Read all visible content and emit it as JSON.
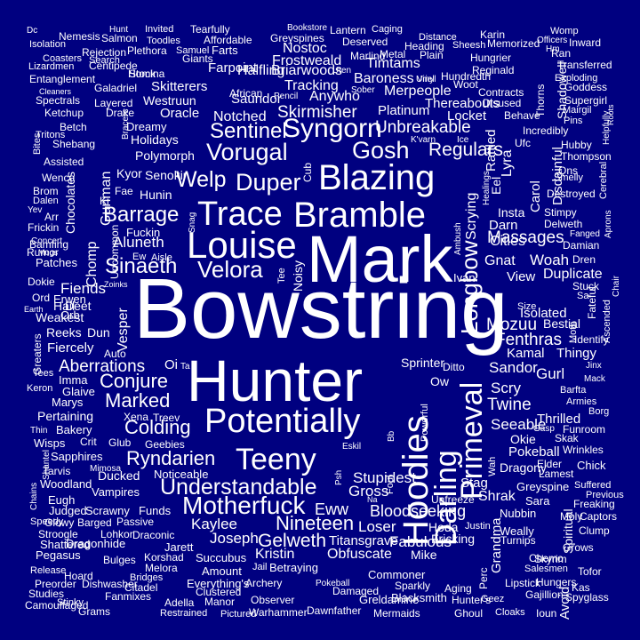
{
  "colors": {
    "background": "#000080",
    "text": "#ffffff"
  },
  "words": [
    "Bowstring",
    "Mark",
    "Hunter",
    "Bramble",
    "Louise",
    "Blazing",
    "Trace",
    "Potentially",
    "Hoodies",
    "Syngorn",
    "Teeny",
    "Darling",
    "Primeval",
    "Motherfuck",
    "Understandable",
    "Vorugal",
    "Gosh",
    "Sentinel",
    "Duper",
    "Velora",
    "Welp",
    "Longbow",
    "Sinaeth",
    "Barrage",
    "Conjure",
    "Marked",
    "Colding",
    "Ryndarien",
    "Nineteen",
    "Gelweth",
    "Skirmisher",
    "Unbreakable",
    "Regulars",
    "Aberrations",
    "Massages",
    "Bloodseeking",
    "Eww",
    "Twine",
    "Fenthras",
    "Mozuu",
    "Aluneth",
    "Fiends",
    "Kaylee",
    "Joseph",
    "Sandor",
    "Scry",
    "Seeable",
    "Gurl",
    "Kamal",
    "Shrak",
    "Stupidest",
    "Gross",
    "Loser",
    "Fabulous",
    "Stag",
    "Kristin",
    "Obfuscate",
    "Titansgrave",
    "Fricking",
    "Hoda",
    "Mike",
    "Nostoc",
    "Frostweald",
    "Briarwoods",
    "Tracking",
    "Anywho",
    "Baroness",
    "Timtams",
    "Merpeople",
    "Thereabouts",
    "Platinum",
    "Locket",
    "Notched",
    "Oracle",
    "Halfling",
    "Saundor",
    "Farpoint",
    "Skitterers",
    "Westruun",
    "Polymorph",
    "Holidays",
    "Dreamy",
    "Senokir",
    "Kyor",
    "Hunin",
    "Orb",
    "Erwen",
    "Hail",
    "Deet",
    "Patches",
    "Bamfing",
    "Rumor",
    "Dokie",
    "Ord",
    "Weakest",
    "Reeks",
    "Dun",
    "Fiercely",
    "Imma",
    "Glaive",
    "Marys",
    "Pertaining",
    "Bakery",
    "Crit",
    "Wisps",
    "Sapphires",
    "Tarvis",
    "Woodland",
    "Vampires",
    "Ducked",
    "Noticeable",
    "Geebies",
    "Eugh",
    "Judged",
    "Scrawny",
    "Funds",
    "Glowy",
    "Barged",
    "Passive",
    "Lohkor",
    "Draconic",
    "Jarett",
    "Dragonhide",
    "Stroogle",
    "Shattered",
    "Pegasus",
    "Bulges",
    "Melora",
    "Korshad",
    "Succubus",
    "Amount",
    "Jail",
    "Betraying",
    "Commoner",
    "Blacksmith",
    "Sparkly",
    "Aging",
    "Hunter's",
    "Geez",
    "Gajillion",
    "Ghoul",
    "Cloaks",
    "Ioun",
    "Mermaids",
    "Greldamine",
    "Dawnfather",
    "Observer",
    "Warhammer",
    "Manor",
    "Pictured",
    "Restrained",
    "Adella",
    "Grams",
    "Camouflaged",
    "Stinky",
    "Studies",
    "Preorder",
    "Release",
    "Hoard",
    "Dishwasher",
    "Bridges",
    "Citadel",
    "Fanmixes",
    "Everything's",
    "Clustered",
    "Archery",
    "Damaged",
    "Pokeball",
    "Dc",
    "Hunt",
    "Invited",
    "Tearfully",
    "Bookstore",
    "Lantern",
    "Caging",
    "Karin",
    "Womp",
    "Nemesis",
    "Salmon",
    "Toodles",
    "Affordable",
    "Greyspines",
    "Deserved",
    "Distance",
    "Memorized",
    "Officers",
    "Inward",
    "Isolation",
    "Rejection",
    "Plethora",
    "Samuel",
    "Farts",
    "Heading",
    "Sheesh",
    "Hm",
    "Ran",
    "Coasters",
    "Search",
    "Giants",
    "Marlind",
    "Metal",
    "Plain",
    "Hungrier",
    "Transferred",
    "Lizardmen",
    "Centipede",
    "Homina",
    "Uten",
    "Vinyl",
    "Hundredth",
    "Reginald",
    "Exploding",
    "Entanglement",
    "Stock",
    "Uriel",
    "Woot",
    "Goddess",
    "Cleaners",
    "African",
    "Sober",
    "Contracts",
    "Supergirl",
    "Spectrals",
    "Galadriel",
    "Pencil",
    "Disused",
    "Mairgil",
    "Layered",
    "Behave",
    "Pins",
    "Ketchup",
    "Drake",
    "Betch",
    "Incredibly",
    "Hubby",
    "Tritons",
    "Shebang",
    "K'varn",
    "Ice",
    "Ufc",
    "Thompson",
    "Assisted",
    "Wence",
    "Smelly",
    "Qns",
    "Destroyed",
    "Brom",
    "Dalen",
    "Yev",
    "Arr",
    "Frickin",
    "Concert",
    "Mugs",
    "Zoinks",
    "Earth",
    "Tees",
    "Keron",
    "Thin",
    "Mimosa",
    "Speedy",
    "Auto",
    "Oi",
    "Ta",
    "Xena",
    "Treev",
    "Glub",
    "Fae",
    "Ew",
    "Aisle",
    "Snag",
    "Cub",
    "Noisy",
    "Tee",
    "Fuckin",
    "Ki",
    "Insta",
    "Darn",
    "Cities",
    "Gnat",
    "Woah",
    "Dren",
    "Duplicate",
    "Stuck",
    "Sa",
    "Size",
    "Isolated",
    "Bestial",
    "Identify",
    "Thingy",
    "Jinx",
    "Mack",
    "Barfta",
    "Armies",
    "Borg",
    "Thrilled",
    "Gasp",
    "Funroom",
    "Skak",
    "Okie",
    "Wrinkles",
    "Pokeball",
    "Dragony",
    "Elder",
    "Chick",
    "Lamest",
    "Greyspine",
    "Suffered",
    "Previous",
    "Sara",
    "Freaking",
    "Nubbin",
    "Moly",
    "Captors",
    "Weally",
    "Clump",
    "Turnips",
    "Skyrim",
    "Chemo",
    "Grows",
    "Salesmen",
    "Tofor",
    "Lipstick",
    "Hungers",
    "Kas",
    "Spyglass",
    "Stimpy",
    "Delweth",
    "Fanged",
    "Damian",
    "Sprinter",
    "Ditto",
    "Ow",
    "Ivan",
    "View",
    "Eskil",
    "Unfreeze",
    "Na",
    "Justin",
    "Bb",
    "Psh",
    "Foul",
    "Eel",
    "Rattled",
    "Lyra",
    "Carol",
    "Disdainful",
    "Shadowell",
    "Thorns",
    "Helpfully",
    "Healings",
    "Scrying",
    "Ambush",
    "Powerful",
    "Wah",
    "Grandma",
    "Perc",
    "Spiritual",
    "Avoid",
    "Gunman",
    "Chomp",
    "Chocolates",
    "Uncommon",
    "Vesper",
    "Bites",
    "Bracers",
    "Greaters",
    "Chains",
    "Shantel",
    "Ascended",
    "Moth",
    "Fateful",
    "Chair",
    "Aprons",
    "Cerebral",
    "Roots",
    "Chop",
    "Dare"
  ]
}
